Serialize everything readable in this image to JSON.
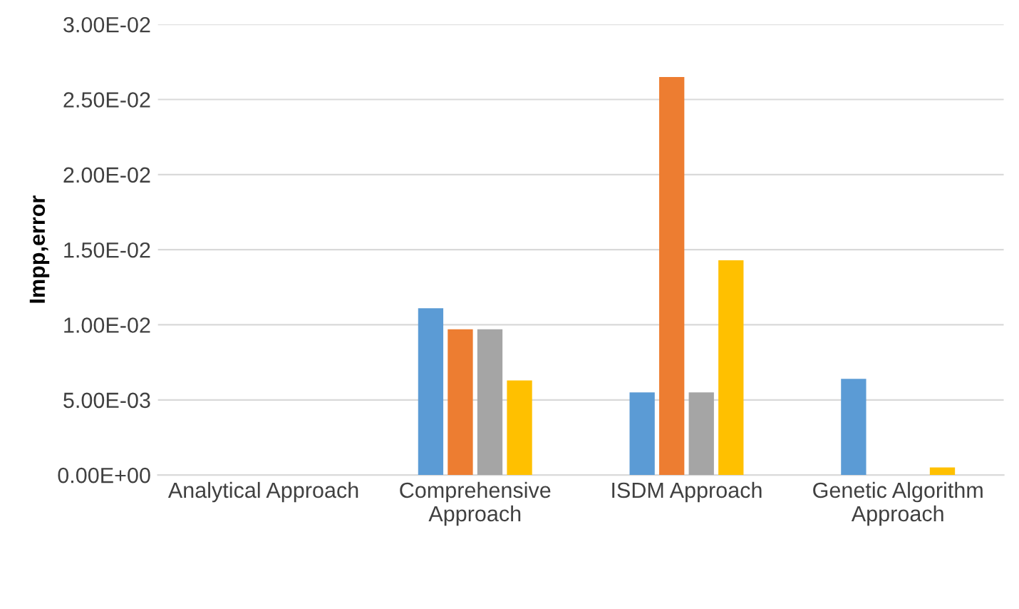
{
  "chart_data": {
    "type": "bar",
    "ylabel": "Impp,error",
    "categories": [
      "Analytical Approach",
      "Comprehensive\nApproach",
      "ISDM Approach",
      "Genetic Algorithm\nApproach"
    ],
    "series": [
      {
        "color": "#5b9bd5",
        "values": [
          0,
          0.0111,
          0.0055,
          0.0064
        ]
      },
      {
        "color": "#ed7d31",
        "values": [
          0,
          0.0097,
          0.0265,
          0
        ]
      },
      {
        "color": "#a5a5a5",
        "values": [
          0,
          0.0097,
          0.0055,
          0
        ]
      },
      {
        "color": "#ffc000",
        "values": [
          0,
          0.0063,
          0.0143,
          0.0005
        ]
      }
    ],
    "ylim": [
      0,
      0.03
    ],
    "yticks": [
      {
        "value": 0,
        "label": "0.00E+00"
      },
      {
        "value": 0.005,
        "label": "5.00E-03"
      },
      {
        "value": 0.01,
        "label": "1.00E-02"
      },
      {
        "value": 0.015,
        "label": "1.50E-02"
      },
      {
        "value": 0.02,
        "label": "2.00E-02"
      },
      {
        "value": 0.025,
        "label": "2.50E-02"
      },
      {
        "value": 0.03,
        "label": "3.00E-02"
      }
    ],
    "grid": "y"
  }
}
